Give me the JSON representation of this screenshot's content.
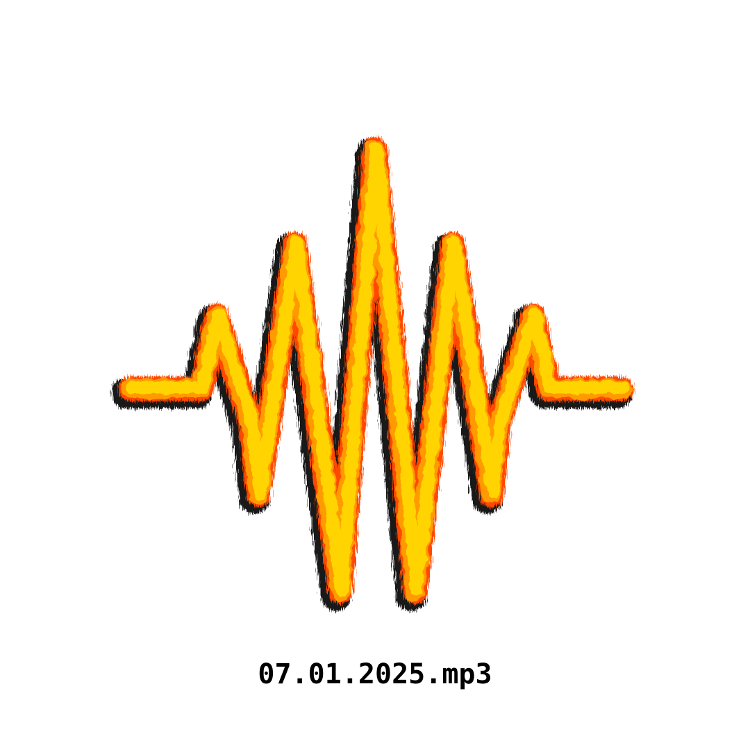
{
  "file": {
    "name": "07.01.2025.mp3"
  },
  "waveform": {
    "icon": "sound-wave-icon",
    "colors": {
      "core": "#ffd400",
      "mid": "#ff9a00",
      "edge": "#ff4a00",
      "shadow": "#000000",
      "background": "#ffffff"
    }
  }
}
